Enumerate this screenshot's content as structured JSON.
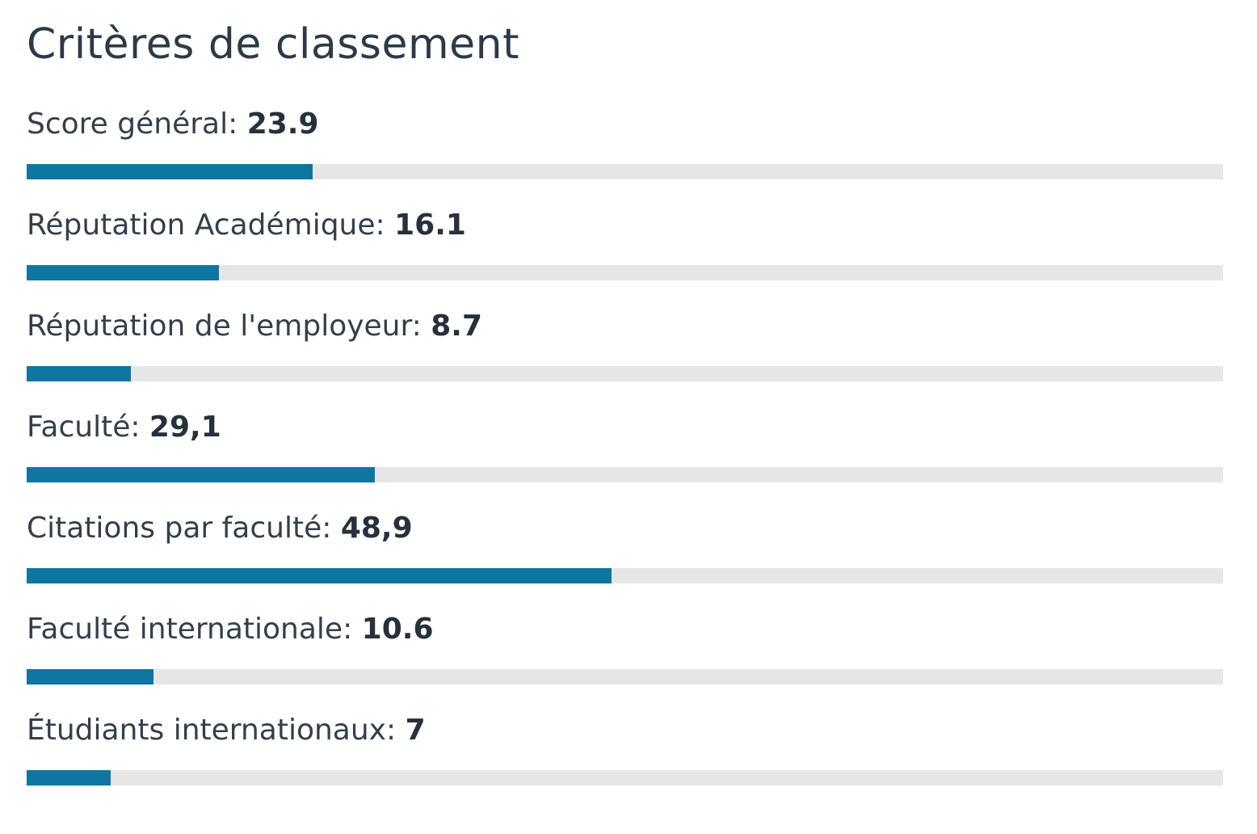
{
  "header": {
    "title": "Critères de classement"
  },
  "criteria": [
    {
      "label": "Score général:",
      "value_text": "23.9",
      "value": 23.9
    },
    {
      "label": "Réputation Académique:",
      "value_text": "16.1",
      "value": 16.1
    },
    {
      "label": "Réputation de l'employeur:",
      "value_text": "8.7",
      "value": 8.7
    },
    {
      "label": "Faculté:",
      "value_text": "29,1",
      "value": 29.1
    },
    {
      "label": "Citations par faculté:",
      "value_text": "48,9",
      "value": 48.9
    },
    {
      "label": "Faculté internationale:",
      "value_text": "10.6",
      "value": 10.6
    },
    {
      "label": "Étudiants internationaux:",
      "value_text": "7",
      "value": 7
    }
  ],
  "scale": {
    "max": 100
  },
  "colors": {
    "bar_fill": "#0e76a0",
    "bar_track": "#e6e6e6",
    "text": "#333f4b"
  }
}
